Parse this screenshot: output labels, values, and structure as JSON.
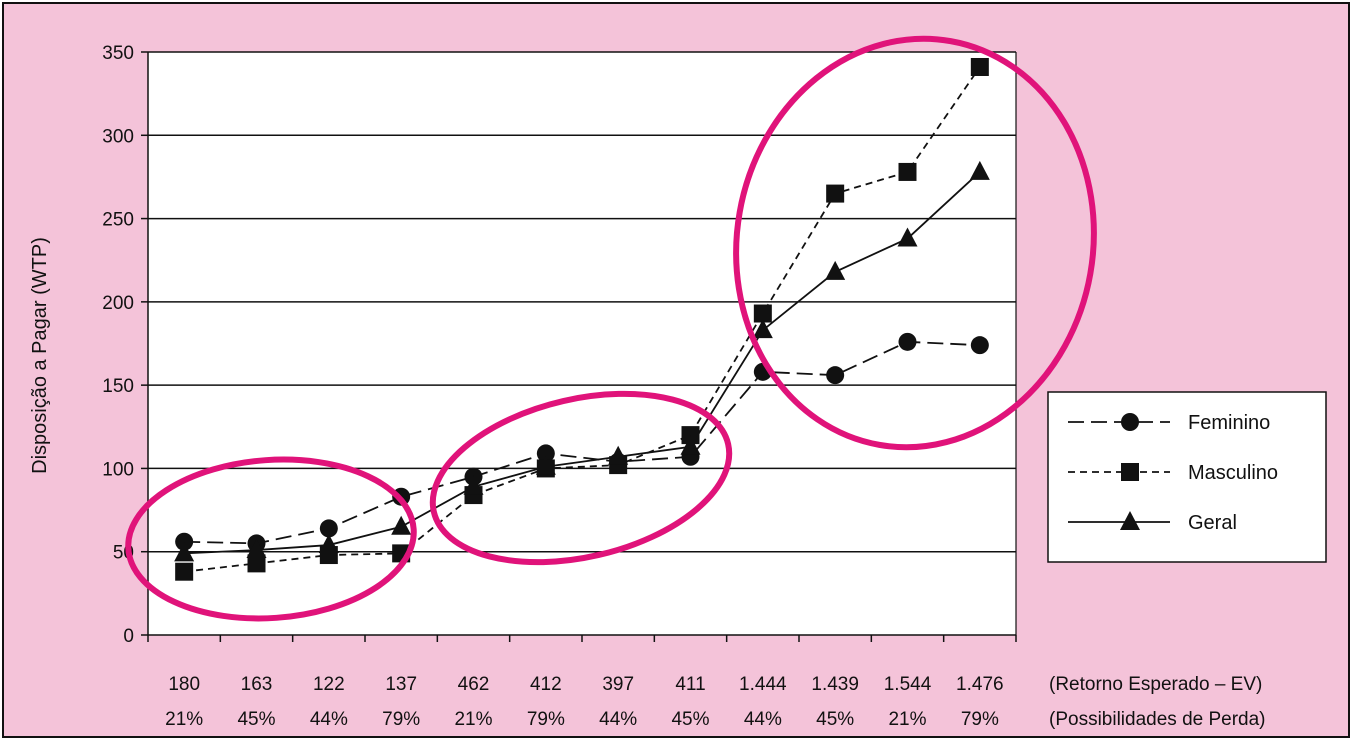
{
  "chart_data": {
    "type": "line",
    "ylabel": "Disposição a Pagar (WTP)",
    "ylim": [
      0,
      350
    ],
    "yticks": [
      0,
      50,
      100,
      150,
      200,
      250,
      300,
      350
    ],
    "grid": true,
    "legend_position": "right",
    "x_row1_label": "(Retorno Esperado – EV)",
    "x_row2_label": "(Possibilidades de Perda)",
    "x_row1": [
      "180",
      "163",
      "122",
      "137",
      "462",
      "412",
      "397",
      "411",
      "1.444",
      "1.439",
      "1.544",
      "1.476"
    ],
    "x_row2": [
      "21%",
      "45%",
      "44%",
      "79%",
      "21%",
      "79%",
      "44%",
      "45%",
      "44%",
      "45%",
      "21%",
      "79%"
    ],
    "series": [
      {
        "name": "Feminino",
        "marker": "circle",
        "dash": "long",
        "values": [
          56,
          55,
          64,
          83,
          95,
          109,
          104,
          107,
          158,
          156,
          176,
          174
        ]
      },
      {
        "name": "Masculino",
        "marker": "square",
        "dash": "short",
        "values": [
          38,
          43,
          48,
          49,
          84,
          100,
          102,
          120,
          193,
          265,
          278,
          341
        ]
      },
      {
        "name": "Geral",
        "marker": "triangle",
        "dash": "solid",
        "values": [
          49,
          51,
          54,
          65,
          89,
          101,
          107,
          113,
          183,
          218,
          238,
          278
        ]
      }
    ],
    "annotations": [
      "highlight-ellipse-group-1",
      "highlight-ellipse-group-2",
      "highlight-ellipse-group-3"
    ],
    "colors": {
      "background": "#f4c3d9",
      "plot_area": "#ffffff",
      "highlight": "#e0137a",
      "series": "#111111"
    }
  }
}
